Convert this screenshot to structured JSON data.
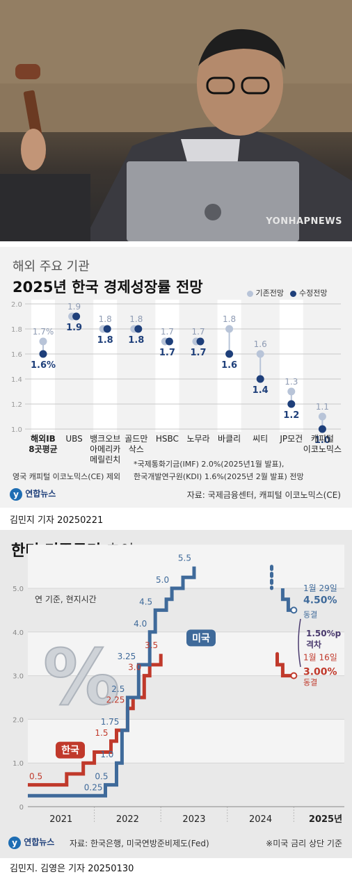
{
  "photo": {
    "watermark": "YONHAPNEWS"
  },
  "chart1": {
    "title_small": "해외 주요 기관",
    "title_big": "2025년 한국 경제성장률 전망",
    "legend": {
      "old": "기존전망",
      "new": "수정전망"
    },
    "yticks": [
      "2.0",
      "1.8",
      "1.6",
      "1.4",
      "1.2",
      "1.0"
    ],
    "footnote_left": "영국 캐피털 이코노믹스(CE) 제외",
    "footnote_right_1": "*국제통화기금(IMF) 2.0%(2025년1월 발표),",
    "footnote_right_2": "한국개발연구원(KDI) 1.6%(2025년 2월 발표) 전망",
    "logo_text": "연합뉴스",
    "source": "자료: 국제금융센터, 캐피털 이코노믹스(CE)",
    "credit": "김민지 기자  20250221",
    "colors": {
      "old": "#b8c4d8",
      "new": "#1e3f7a"
    }
  },
  "chart_data": [
    {
      "type": "scatter",
      "title": "2025년 한국 경제성장률 전망",
      "categories": [
        "해외IB 8곳평균",
        "UBS",
        "뱅크오브 아메리카 메릴린치",
        "골드만 삭스",
        "HSBC",
        "노무라",
        "바클리",
        "씨티",
        "JP모건",
        "캐피털 이코노믹스"
      ],
      "category_lines": [
        [
          "해외IB",
          "8곳평균"
        ],
        [
          "UBS"
        ],
        [
          "뱅크오브",
          "아메리카",
          "메릴린치"
        ],
        [
          "골드만",
          "삭스"
        ],
        [
          "HSBC"
        ],
        [
          "노무라"
        ],
        [
          "바클리"
        ],
        [
          "씨티"
        ],
        [
          "JP모건"
        ],
        [
          "캐피털",
          "이코노믹스"
        ]
      ],
      "series": [
        {
          "name": "기존전망",
          "values": [
            1.7,
            1.9,
            1.8,
            1.8,
            1.7,
            1.7,
            1.8,
            1.6,
            1.3,
            1.1
          ]
        },
        {
          "name": "수정전망",
          "values": [
            1.6,
            1.9,
            1.8,
            1.8,
            1.7,
            1.7,
            1.6,
            1.4,
            1.2,
            1.0
          ]
        }
      ],
      "old_labels": [
        "1.7%",
        "1.9",
        "1.8",
        "1.8",
        "1.7",
        "1.7",
        "1.8",
        "1.6",
        "1.3",
        "1.1"
      ],
      "new_labels": [
        "1.6%",
        "1.9",
        "1.8",
        "1.8",
        "1.7",
        "1.7",
        "1.6",
        "1.4",
        "1.2",
        "1.0"
      ],
      "ylim": [
        1.0,
        2.0
      ]
    },
    {
      "type": "line",
      "title": "한미 기준금리 추이",
      "series": [
        {
          "name": "미국",
          "color": "#3f6a9a",
          "points": [
            [
              "2021-01",
              0.25
            ],
            [
              "2022-03",
              0.25
            ],
            [
              "2022-03",
              0.5
            ],
            [
              "2022-05",
              0.5
            ],
            [
              "2022-05",
              1.0
            ],
            [
              "2022-06",
              1.0
            ],
            [
              "2022-06",
              1.75
            ],
            [
              "2022-07",
              1.75
            ],
            [
              "2022-07",
              2.5
            ],
            [
              "2022-09",
              2.5
            ],
            [
              "2022-09",
              3.25
            ],
            [
              "2022-11",
              3.25
            ],
            [
              "2022-11",
              4.0
            ],
            [
              "2022-12",
              4.0
            ],
            [
              "2022-12",
              4.5
            ],
            [
              "2023-02",
              4.5
            ],
            [
              "2023-02",
              4.75
            ],
            [
              "2023-03",
              4.75
            ],
            [
              "2023-03",
              5.0
            ],
            [
              "2023-05",
              5.0
            ],
            [
              "2023-05",
              5.25
            ],
            [
              "2023-07",
              5.25
            ],
            [
              "2023-07",
              5.5
            ],
            [
              "2024-09",
              5.5
            ],
            [
              "2024-09",
              5.0
            ],
            [
              "2024-11",
              5.0
            ],
            [
              "2024-11",
              4.75
            ],
            [
              "2024-12",
              4.75
            ],
            [
              "2024-12",
              4.5
            ],
            [
              "2025-01",
              4.5
            ]
          ]
        },
        {
          "name": "한국",
          "color": "#c0392b",
          "points": [
            [
              "2021-01",
              0.5
            ],
            [
              "2021-08",
              0.5
            ],
            [
              "2021-08",
              0.75
            ],
            [
              "2021-11",
              0.75
            ],
            [
              "2021-11",
              1.0
            ],
            [
              "2022-01",
              1.0
            ],
            [
              "2022-01",
              1.25
            ],
            [
              "2022-04",
              1.25
            ],
            [
              "2022-04",
              1.5
            ],
            [
              "2022-05",
              1.5
            ],
            [
              "2022-05",
              1.75
            ],
            [
              "2022-07",
              1.75
            ],
            [
              "2022-07",
              2.25
            ],
            [
              "2022-08",
              2.25
            ],
            [
              "2022-08",
              2.5
            ],
            [
              "2022-10",
              2.5
            ],
            [
              "2022-10",
              3.0
            ],
            [
              "2022-11",
              3.0
            ],
            [
              "2022-11",
              3.25
            ],
            [
              "2023-01",
              3.25
            ],
            [
              "2023-01",
              3.5
            ],
            [
              "2024-10",
              3.5
            ],
            [
              "2024-10",
              3.25
            ],
            [
              "2024-11",
              3.25
            ],
            [
              "2024-11",
              3.0
            ],
            [
              "2025-01",
              3.0
            ]
          ]
        }
      ],
      "us_labels": [
        {
          "text": "0.25",
          "date": "2022-03",
          "v": 0.25
        },
        {
          "text": "0.5",
          "date": "2022-04",
          "v": 0.5
        },
        {
          "text": "1.0",
          "date": "2022-05",
          "v": 1.0
        },
        {
          "text": "1.75",
          "date": "2022-06",
          "v": 1.75
        },
        {
          "text": "2.5",
          "date": "2022-07",
          "v": 2.5
        },
        {
          "text": "3.25",
          "date": "2022-09",
          "v": 3.25
        },
        {
          "text": "4.0",
          "date": "2022-11",
          "v": 4.0
        },
        {
          "text": "4.5",
          "date": "2022-12",
          "v": 4.5
        },
        {
          "text": "5.0",
          "date": "2023-03",
          "v": 5.0
        },
        {
          "text": "5.5",
          "date": "2023-07",
          "v": 5.5
        }
      ],
      "kr_labels": [
        {
          "text": "0.5",
          "date": "2021-01",
          "v": 0.5
        },
        {
          "text": "1.0",
          "date": "2021-11",
          "v": 1.0
        },
        {
          "text": "1.5",
          "date": "2022-04",
          "v": 1.5
        },
        {
          "text": "2.25",
          "date": "2022-07",
          "v": 2.25
        },
        {
          "text": "3.0",
          "date": "2022-10",
          "v": 3.0
        },
        {
          "text": "3.5",
          "date": "2023-01",
          "v": 3.5
        }
      ],
      "ylim": [
        0,
        5.5
      ],
      "yticks": [
        "0",
        "1.0",
        "2.0",
        "3.0",
        "4.0",
        "5.0"
      ],
      "xticks": [
        "2021",
        "2022",
        "2023",
        "2024",
        "2025년"
      ]
    }
  ],
  "chart2": {
    "title_bold": "한미 기준금리",
    "title_light": " 추이",
    "subtitle": "연 기준, 현지시간",
    "percent_glyph": "%",
    "us_tag": "미국",
    "kr_tag": "한국",
    "us_end_date": "1월 29일",
    "us_end_value": "4.50%",
    "us_end_status": "동결",
    "gap_value": "1.50%p",
    "gap_label": "격차",
    "kr_end_date": "1월 16일",
    "kr_end_value": "3.00%",
    "kr_end_status": "동결",
    "logo_text": "연합뉴스",
    "source": "자료: 한국은행, 미국연방준비제도(Fed)",
    "note": "※미국 금리 상단 기준",
    "credit": "김민지. 김영은 기자  20250130",
    "colors": {
      "us": "#3f6a9a",
      "kr": "#c0392b",
      "gap": "#4a3a6e"
    }
  }
}
